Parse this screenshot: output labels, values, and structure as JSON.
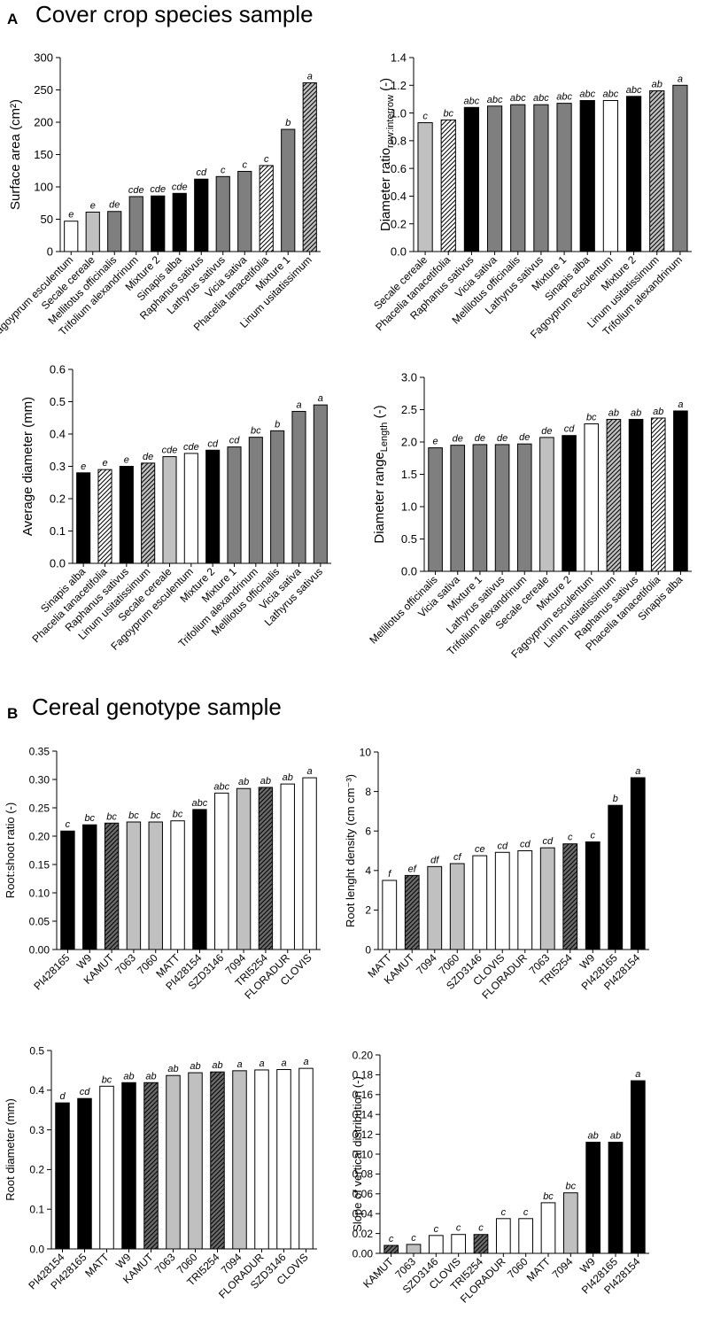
{
  "sections": {
    "a": {
      "letter": "A",
      "title": "Cover crop species sample"
    },
    "b": {
      "letter": "B",
      "title": "Cereal genotype sample"
    }
  },
  "colors": {
    "grey": "#7f7f7f",
    "light": "#c0c0c0",
    "black": "#000000",
    "white": "#ffffff",
    "hatchLight": "#c0c0c0",
    "hatchDark": "#6b6b6b"
  },
  "chart_data": [
    {
      "id": "surface-area",
      "type": "bar",
      "ylabel": "Surface area (cm²)",
      "ylim": [
        0,
        300
      ],
      "yticks": [
        "0",
        "50",
        "100",
        "150",
        "200",
        "250",
        "300"
      ],
      "categories": [
        "Fagoyprum esculentum",
        "Secale cereale",
        "Mellitotus officinalis",
        "Trifolium alexandrinum",
        "Mixture 2",
        "Sinapis alba",
        "Raphanus sativus",
        "Lathyrus sativus",
        "Vicia sativa",
        "Phacelia tanacetifolia",
        "Mixture 1",
        "Linum usitatissimum"
      ],
      "values": [
        47,
        61,
        62,
        85,
        86,
        90,
        112,
        116,
        124,
        133,
        189,
        261
      ],
      "labels": [
        "e",
        "e",
        "de",
        "cde",
        "cde",
        "cde",
        "cd",
        "c",
        "c",
        "c",
        "b",
        "a"
      ],
      "fills": [
        "white",
        "light",
        "grey",
        "grey",
        "black",
        "black",
        "black",
        "grey",
        "grey",
        "hatchWhite",
        "grey",
        "hatchLight"
      ]
    },
    {
      "id": "diameter-ratio",
      "type": "bar",
      "ylabel": "Diameter ratio",
      "ysub": "row:interrow",
      "yunit": " (-)",
      "ylim": [
        0,
        1.4
      ],
      "yticks": [
        "0.0",
        "0.2",
        "0.4",
        "0.6",
        "0.8",
        "1.0",
        "1.2",
        "1.4"
      ],
      "categories": [
        "Secale cereale",
        "Phacelia tanacetifolia",
        "Raphanus sativus",
        "Vicia sativa",
        "Mellilotus officinalis",
        "Lathyrus sativus",
        "Mixture 1",
        "Sinapis alba",
        "Fagoyprum esculentum",
        "Mixture 2",
        "Linum usitatissimum",
        "Trifolium alexandrinum"
      ],
      "values": [
        0.93,
        0.95,
        1.04,
        1.05,
        1.06,
        1.06,
        1.07,
        1.09,
        1.09,
        1.12,
        1.16,
        1.2
      ],
      "labels": [
        "c",
        "bc",
        "abc",
        "abc",
        "abc",
        "abc",
        "abc",
        "abc",
        "abc",
        "abc",
        "ab",
        "a"
      ],
      "fills": [
        "light",
        "hatchWhite",
        "black",
        "grey",
        "grey",
        "grey",
        "grey",
        "black",
        "white",
        "black",
        "hatchLight",
        "grey"
      ]
    },
    {
      "id": "average-diameter",
      "type": "bar",
      "ylabel": "Average diameter (mm)",
      "ylim": [
        0,
        0.6
      ],
      "yticks": [
        "0.0",
        "0.1",
        "0.2",
        "0.3",
        "0.4",
        "0.5",
        "0.6"
      ],
      "categories": [
        "Sinapis alba",
        "Phacelia tanacetifolia",
        "Raphanus sativus",
        "Linum usitatissimum",
        "Secale cereale",
        "Fagoyprum esculentum",
        "Mixture 2",
        "Mixture 1",
        "Trifolium alexandrinum",
        "Mellilotus officinalis",
        "Vicia sativa",
        "Lathyrus sativus"
      ],
      "values": [
        0.28,
        0.29,
        0.3,
        0.31,
        0.33,
        0.34,
        0.35,
        0.36,
        0.39,
        0.41,
        0.47,
        0.49
      ],
      "labels": [
        "e",
        "e",
        "e",
        "de",
        "cde",
        "cde",
        "cd",
        "cd",
        "bc",
        "b",
        "a",
        "a"
      ],
      "fills": [
        "black",
        "hatchWhite",
        "black",
        "hatchLight",
        "light",
        "white",
        "black",
        "grey",
        "grey",
        "grey",
        "grey",
        "grey"
      ]
    },
    {
      "id": "diameter-range",
      "type": "bar",
      "ylabel": "Diameter range",
      "ysub": "Length",
      "yunit": " (-)",
      "ylim": [
        0,
        3.0
      ],
      "yticks": [
        "0.0",
        "0.5",
        "1.0",
        "1.5",
        "2.0",
        "2.5",
        "3.0"
      ],
      "categories": [
        "Mellilotus officinalis",
        "Vicia sativa",
        "Mixture 1",
        "Lathyrus sativus",
        "Trifolium alexandrinum",
        "Secale cereale",
        "Mixture 2",
        "Fagoyprum esculentum",
        "Linum usitatissimum",
        "Raphanus sativus",
        "Phacelia tanacetifolia",
        "Sinapis alba"
      ],
      "values": [
        1.91,
        1.95,
        1.96,
        1.96,
        1.97,
        2.07,
        2.1,
        2.28,
        2.35,
        2.35,
        2.37,
        2.48
      ],
      "labels": [
        "e",
        "de",
        "de",
        "de",
        "de",
        "de",
        "cd",
        "bc",
        "ab",
        "ab",
        "ab",
        "a"
      ],
      "fills": [
        "grey",
        "grey",
        "grey",
        "grey",
        "grey",
        "light",
        "black",
        "white",
        "hatchLight",
        "black",
        "hatchWhite",
        "black"
      ]
    },
    {
      "id": "root-shoot-ratio",
      "type": "bar",
      "ylabel": "Root:shoot ratio (-)",
      "ylim": [
        0,
        0.35
      ],
      "yticks": [
        "0.00",
        "0.05",
        "0.10",
        "0.15",
        "0.20",
        "0.25",
        "0.30",
        "0.35"
      ],
      "categories": [
        "PI428165",
        "W9",
        "KAMUT",
        "7063",
        "7060",
        "MATT",
        "PI428154",
        "SZD3146",
        "7094",
        "TRI5254",
        "FLORADUR",
        "CLOVIS"
      ],
      "values": [
        0.209,
        0.22,
        0.223,
        0.225,
        0.225,
        0.227,
        0.247,
        0.276,
        0.284,
        0.286,
        0.292,
        0.303
      ],
      "labels": [
        "c",
        "bc",
        "bc",
        "bc",
        "bc",
        "bc",
        "abc",
        "abc",
        "ab",
        "ab",
        "ab",
        "a"
      ],
      "fills": [
        "black",
        "black",
        "hatchDark",
        "light",
        "light",
        "white",
        "black",
        "white",
        "light",
        "hatchDark",
        "white",
        "white"
      ]
    },
    {
      "id": "root-length-density",
      "type": "bar",
      "ylabel": "Root lenght density (cm cm⁻³)",
      "ylim": [
        0,
        10
      ],
      "yticks": [
        "0",
        "2",
        "4",
        "6",
        "8",
        "10"
      ],
      "categories": [
        "MATT",
        "KAMUT",
        "7094",
        "7060",
        "SZD3146",
        "CLOVIS",
        "FLORADUR",
        "7063",
        "TRI5254",
        "W9",
        "PI428165",
        "PI428154"
      ],
      "values": [
        3.5,
        3.75,
        4.2,
        4.35,
        4.75,
        4.92,
        5.0,
        5.15,
        5.35,
        5.45,
        7.3,
        8.7
      ],
      "labels": [
        "f",
        "ef",
        "df",
        "cf",
        "ce",
        "cd",
        "cd",
        "cd",
        "c",
        "c",
        "b",
        "a"
      ],
      "fills": [
        "white",
        "hatchDark",
        "light",
        "light",
        "white",
        "white",
        "white",
        "light",
        "hatchDark",
        "black",
        "black",
        "black"
      ]
    },
    {
      "id": "root-diameter",
      "type": "bar",
      "ylabel": "Root diameter (mm)",
      "ylim": [
        0,
        0.5
      ],
      "yticks": [
        "0.0",
        "0.1",
        "0.2",
        "0.3",
        "0.4",
        "0.5"
      ],
      "categories": [
        "PI428154",
        "PI428165",
        "MATT",
        "W9",
        "KAMUT",
        "7063",
        "7060",
        "TRI5254",
        "7094",
        "FLORADUR",
        "SZD3146",
        "CLOVIS"
      ],
      "values": [
        0.368,
        0.379,
        0.41,
        0.419,
        0.419,
        0.437,
        0.444,
        0.446,
        0.449,
        0.451,
        0.452,
        0.455
      ],
      "labels": [
        "d",
        "cd",
        "bc",
        "ab",
        "ab",
        "ab",
        "ab",
        "ab",
        "a",
        "a",
        "a",
        "a"
      ],
      "fills": [
        "black",
        "black",
        "white",
        "black",
        "hatchDark",
        "light",
        "light",
        "hatchDark",
        "light",
        "white",
        "white",
        "white"
      ]
    },
    {
      "id": "slope-vertical-distribution",
      "type": "bar",
      "ylabel": "Slope of vertical distribution (-)",
      "ylim": [
        0,
        0.2
      ],
      "yticks": [
        "0.00",
        "0.02",
        "0.04",
        "0.06",
        "0.08",
        "0.10",
        "0.12",
        "0.14",
        "0.16",
        "0.18",
        "0.20"
      ],
      "categories": [
        "KAMUT",
        "7063",
        "SZD3146",
        "CLOVIS",
        "TRI5254",
        "FLORADUR",
        "7060",
        "MATT",
        "7094",
        "W9",
        "PI428165",
        "PI428154"
      ],
      "values": [
        0.008,
        0.009,
        0.018,
        0.019,
        0.019,
        0.035,
        0.035,
        0.051,
        0.061,
        0.112,
        0.112,
        0.174
      ],
      "labels": [
        "c",
        "c",
        "c",
        "c",
        "c",
        "c",
        "c",
        "bc",
        "bc",
        "ab",
        "ab",
        "a"
      ],
      "fills": [
        "hatchDark",
        "light",
        "white",
        "white",
        "hatchDark",
        "white",
        "white",
        "white",
        "light",
        "black",
        "black",
        "black"
      ]
    }
  ]
}
